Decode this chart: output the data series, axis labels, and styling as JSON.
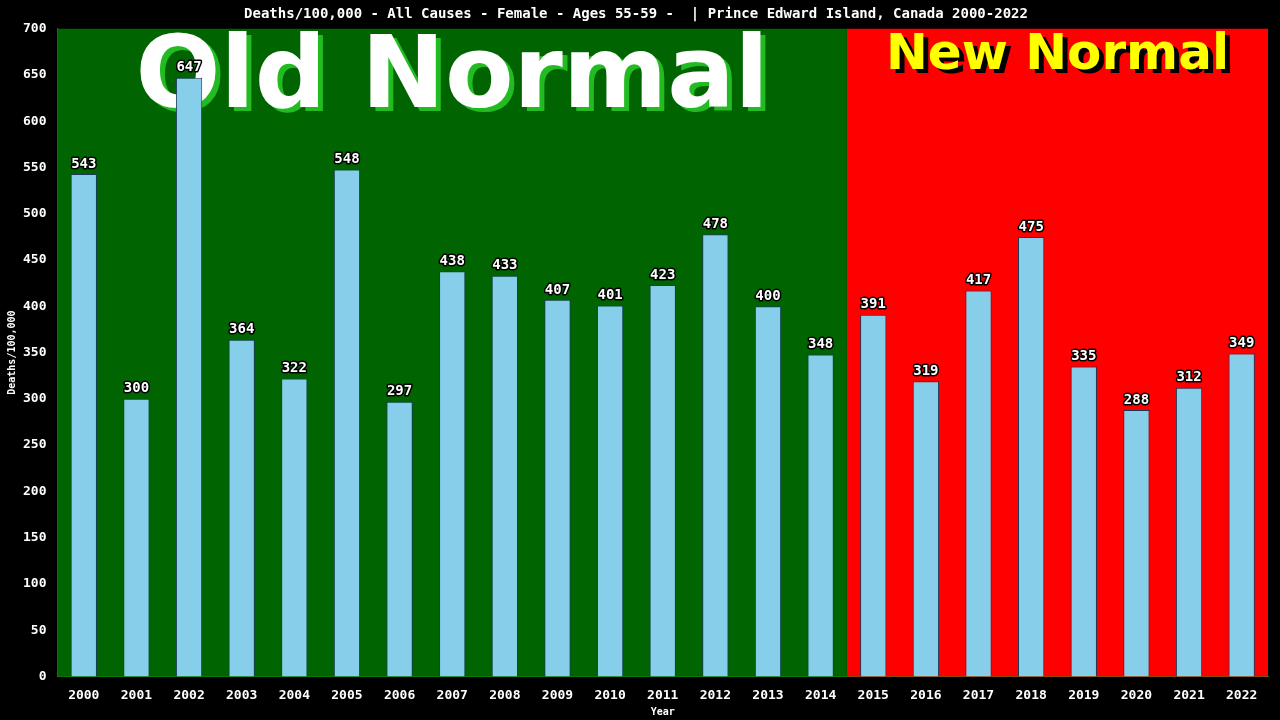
{
  "chart_data": {
    "type": "bar",
    "title": "Deaths/100,000 - All Causes - Female - Ages 55-59 -  | Prince Edward Island, Canada 2000-2022",
    "xlabel": "Year",
    "ylabel": "Deaths/100,000",
    "categories": [
      "2000",
      "2001",
      "2002",
      "2003",
      "2004",
      "2005",
      "2006",
      "2007",
      "2008",
      "2009",
      "2010",
      "2011",
      "2012",
      "2013",
      "2014",
      "2015",
      "2016",
      "2017",
      "2018",
      "2019",
      "2020",
      "2021",
      "2022"
    ],
    "values": [
      543,
      300,
      647,
      364,
      322,
      548,
      297,
      438,
      433,
      407,
      401,
      423,
      478,
      400,
      348,
      391,
      319,
      417,
      475,
      335,
      288,
      312,
      349
    ],
    "color": "#87ceeb",
    "ylim": [
      0,
      700
    ],
    "yticks": [
      0,
      50,
      100,
      150,
      200,
      250,
      300,
      350,
      400,
      450,
      500,
      550,
      600,
      650,
      700
    ],
    "grid": false,
    "legend": false,
    "data_labels": true,
    "bands": [
      {
        "axis": "x",
        "from": "2000",
        "to": "2014",
        "label": "Old Normal",
        "color": "#006400"
      },
      {
        "axis": "x",
        "from": "2015",
        "to": "2022",
        "label": "New Normal",
        "color": "#ff0000"
      }
    ]
  }
}
